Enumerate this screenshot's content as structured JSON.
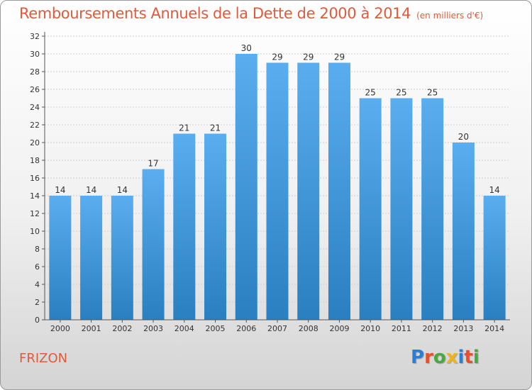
{
  "chart_data": {
    "type": "bar",
    "title": "Remboursements Annuels de la Dette de 2000 à 2014",
    "subtitle": "(en milliers d'€)",
    "categories": [
      "2000",
      "2001",
      "2002",
      "2003",
      "2004",
      "2005",
      "2006",
      "2007",
      "2008",
      "2009",
      "2010",
      "2011",
      "2012",
      "2013",
      "2014"
    ],
    "values": [
      14,
      14,
      14,
      17,
      21,
      21,
      30,
      29,
      29,
      29,
      25,
      25,
      25,
      20,
      14
    ],
    "ylim": [
      0,
      32
    ],
    "yticks": [
      0,
      2,
      4,
      6,
      8,
      10,
      12,
      14,
      16,
      18,
      20,
      22,
      24,
      26,
      28,
      30,
      32
    ],
    "grid": true,
    "xlabel": "",
    "ylabel": ""
  },
  "footer": {
    "commune": "FRIZON",
    "logo_letters": [
      "P",
      "r",
      "o",
      "x",
      "i",
      "t",
      "i"
    ],
    "logo_colors": [
      "#2a7fd4",
      "#e94f2a",
      "#4aa83f",
      "#f0b21f",
      "#2a7fd4",
      "#e94f2a",
      "#4aa83f"
    ]
  },
  "colors": {
    "bar_top": "#5aaef0",
    "bar_bottom": "#2a7fc0",
    "title": "#e05a3c"
  }
}
